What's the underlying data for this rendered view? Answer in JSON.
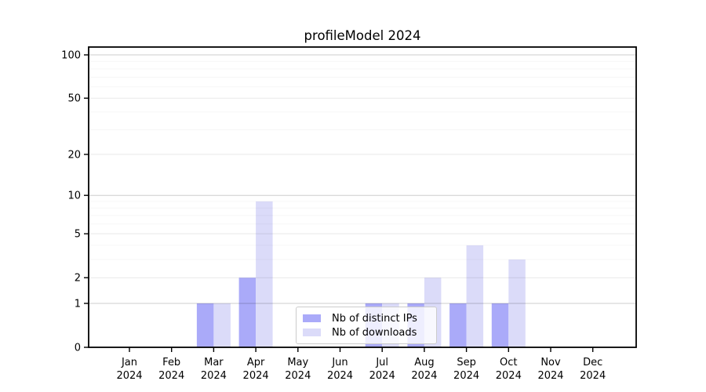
{
  "chart_data": {
    "type": "bar",
    "title": "profileModel 2024",
    "categories": [
      "Jan 2024",
      "Feb 2024",
      "Mar 2024",
      "Apr 2024",
      "May 2024",
      "Jun 2024",
      "Jul 2024",
      "Aug 2024",
      "Sep 2024",
      "Oct 2024",
      "Nov 2024",
      "Dec 2024"
    ],
    "series": [
      {
        "name": "Nb of distinct IPs",
        "color": "#aaaaf9",
        "values": [
          0,
          0,
          1,
          2,
          0,
          0,
          1,
          1,
          1,
          1,
          0,
          0
        ]
      },
      {
        "name": "Nb of downloads",
        "color": "#dbdbf9",
        "values": [
          0,
          0,
          1,
          9,
          0,
          0,
          1,
          2,
          4,
          3,
          0,
          0
        ]
      }
    ],
    "y_axis": {
      "scale": "log1p",
      "ticks": [
        0,
        1,
        2,
        5,
        10,
        20,
        50,
        100
      ],
      "minor_ticks": [
        3,
        4,
        6,
        7,
        8,
        9,
        30,
        40,
        60,
        70,
        80,
        90
      ],
      "ylim": [
        0,
        110
      ]
    },
    "grid": true,
    "legend_position": "lower center",
    "colors": {
      "background": "#ffffff",
      "spine": "#000000",
      "text": "#000000",
      "grid_emphasis": "rgba(0,0,0,0.20)",
      "grid_major": "rgba(0,0,0,0.09)",
      "grid_minor": "rgba(0,0,0,0.035)"
    }
  }
}
